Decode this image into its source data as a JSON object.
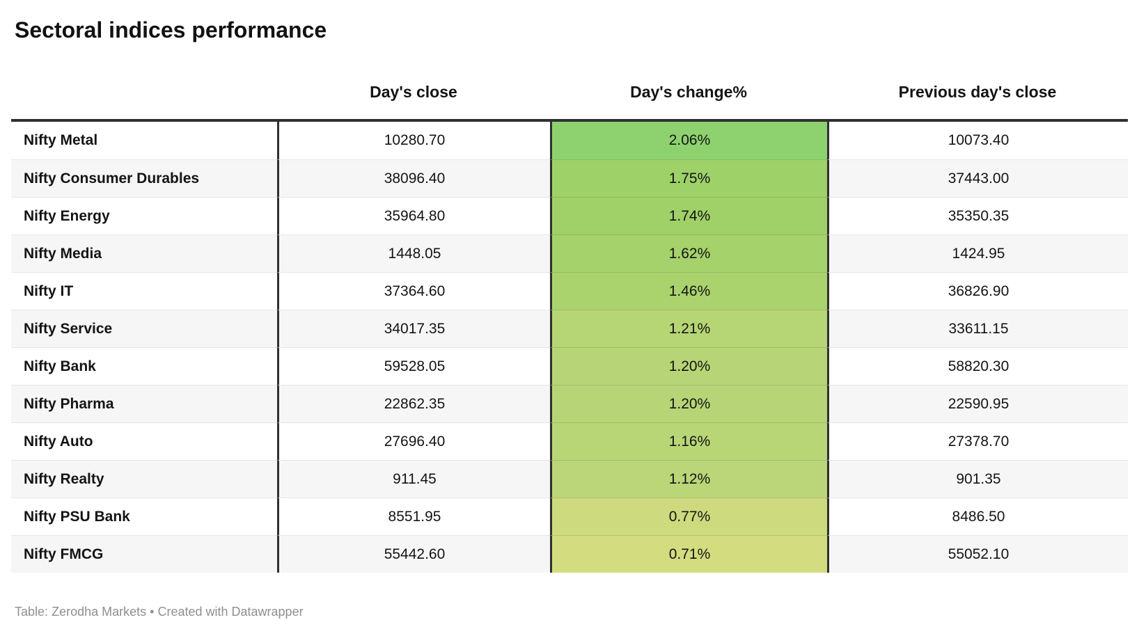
{
  "chart_data": {
    "type": "table",
    "title": "Sectoral indices performance",
    "columns": [
      "",
      "Day's close",
      "Day's change%",
      "Previous day's close"
    ],
    "heatmap_column": "Day's change%",
    "heatmap_scale": {
      "max_color": "#8dd26e",
      "min_color": "#d3dd80",
      "max_value": "2.06%",
      "min_value": "0.71%"
    },
    "rows": [
      {
        "name": "Nifty Metal",
        "close": "10280.70",
        "change": "2.06%",
        "prev": "10073.40",
        "heat_color": "#8dd26e"
      },
      {
        "name": "Nifty Consumer Durables",
        "close": "38096.40",
        "change": "1.75%",
        "prev": "37443.00",
        "heat_color": "#9fd169"
      },
      {
        "name": "Nifty Energy",
        "close": "35964.80",
        "change": "1.74%",
        "prev": "35350.35",
        "heat_color": "#a0d169"
      },
      {
        "name": "Nifty Media",
        "close": "1448.05",
        "change": "1.62%",
        "prev": "1424.95",
        "heat_color": "#a5d26b"
      },
      {
        "name": "Nifty IT",
        "close": "37364.60",
        "change": "1.46%",
        "prev": "36826.90",
        "heat_color": "#aad36e"
      },
      {
        "name": "Nifty Service",
        "close": "34017.35",
        "change": "1.21%",
        "prev": "33611.15",
        "heat_color": "#b6d575"
      },
      {
        "name": "Nifty Bank",
        "close": "59528.05",
        "change": "1.20%",
        "prev": "58820.30",
        "heat_color": "#b7d576"
      },
      {
        "name": "Nifty Pharma",
        "close": "22862.35",
        "change": "1.20%",
        "prev": "22590.95",
        "heat_color": "#b7d576"
      },
      {
        "name": "Nifty Auto",
        "close": "27696.40",
        "change": "1.16%",
        "prev": "27378.70",
        "heat_color": "#b9d677"
      },
      {
        "name": "Nifty Realty",
        "close": "911.45",
        "change": "1.12%",
        "prev": "901.35",
        "heat_color": "#bbd678"
      },
      {
        "name": "Nifty PSU Bank",
        "close": "8551.95",
        "change": "0.77%",
        "prev": "8486.50",
        "heat_color": "#cdda7d"
      },
      {
        "name": "Nifty FMCG",
        "close": "55442.60",
        "change": "0.71%",
        "prev": "55052.10",
        "heat_color": "#d3dd80"
      }
    ]
  },
  "headers": {
    "close": "Day's close",
    "change": "Day's change%",
    "prev": "Previous day's close"
  },
  "footer": {
    "prefix": "Table:",
    "source": "Zerodha Markets",
    "separator": "•",
    "attribution": "Created with Datawrapper"
  },
  "colors": {
    "border_dark": "#303030",
    "row_alt_bg": "#f6f6f6",
    "row_separator": "#e6e6e6",
    "text": "#141414",
    "footer_text": "#8f8f8f"
  }
}
